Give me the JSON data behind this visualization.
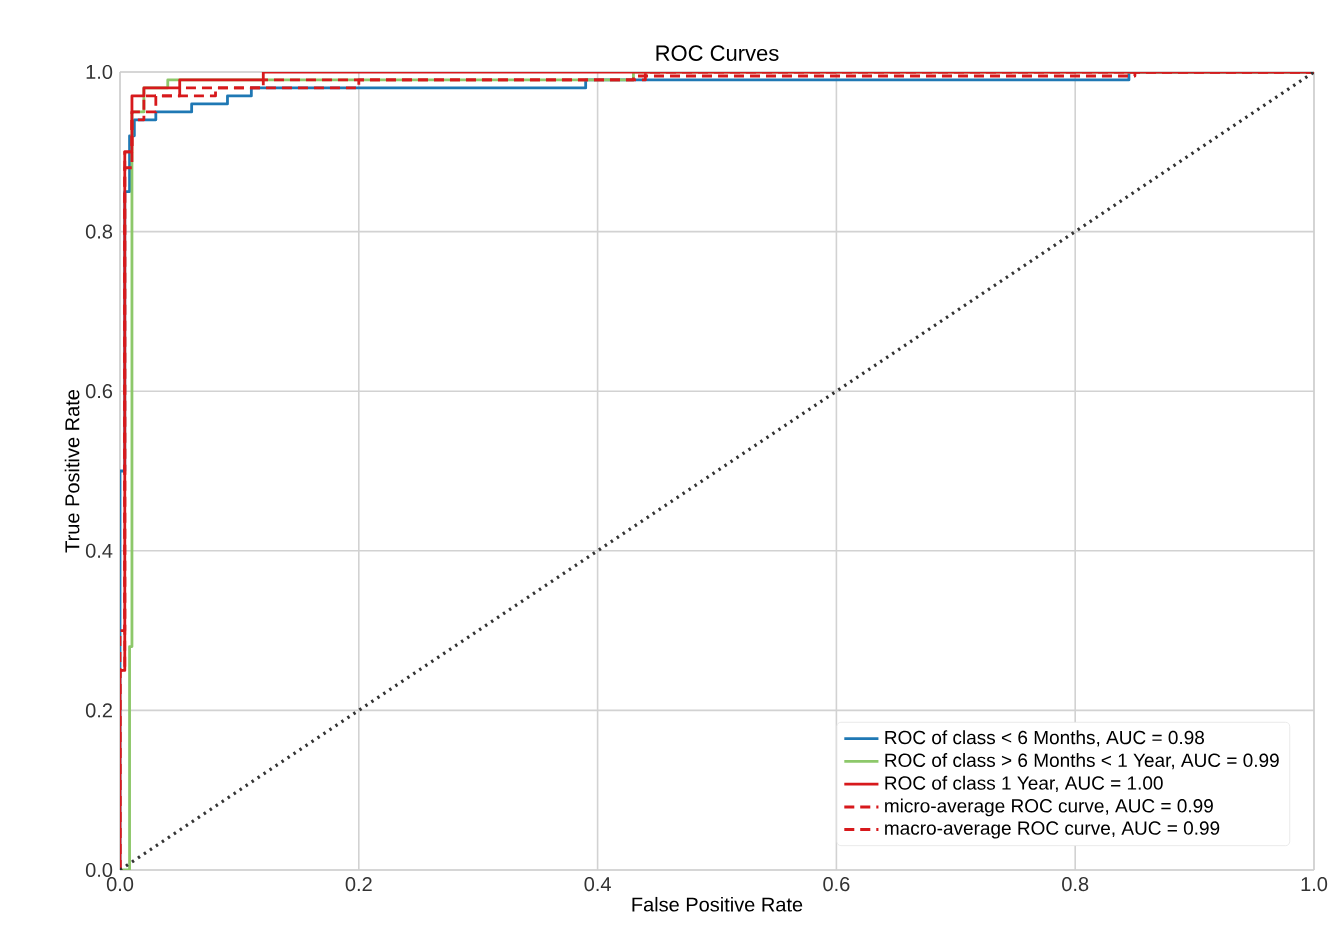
{
  "chart_data": {
    "type": "line",
    "title": "ROC Curves",
    "xlabel": "False Positive Rate",
    "ylabel": "True Positive Rate",
    "xlim": [
      0,
      1
    ],
    "ylim": [
      0,
      1
    ],
    "xticks": [
      {
        "value": 0,
        "label": "0.0"
      },
      0.2,
      0.4,
      0.6,
      0.8,
      {
        "value": 1,
        "label": "1.0"
      }
    ],
    "yticks": [
      {
        "value": 0,
        "label": "0.0"
      },
      0.2,
      0.4,
      0.6,
      0.8,
      {
        "value": 1,
        "label": "1.0"
      }
    ],
    "grid": true,
    "legend": "bottom right",
    "marker": "none",
    "series": [
      {
        "name": "ROC of class < 6 Months, AUC = 0.98",
        "color": "#1f78b4",
        "line_style": "solid",
        "x": [
          0,
          0,
          0.004,
          0.004,
          0.008,
          0.008,
          0.012,
          0.012,
          0.03,
          0.03,
          0.06,
          0.06,
          0.09,
          0.09,
          0.11,
          0.11,
          0.39,
          0.39,
          0.845,
          0.845,
          1
        ],
        "values": [
          0,
          0.5,
          0.5,
          0.85,
          0.85,
          0.92,
          0.92,
          0.94,
          0.94,
          0.95,
          0.95,
          0.96,
          0.96,
          0.97,
          0.97,
          0.98,
          0.98,
          0.99,
          0.99,
          1,
          1
        ]
      },
      {
        "name": "ROC of class > 6 Months < 1 Year, AUC = 0.99",
        "color": "#8dc86a",
        "line_style": "solid",
        "x": [
          0,
          0.008,
          0.008,
          0.01,
          0.01,
          0.02,
          0.02,
          0.04,
          0.04,
          0.43,
          0.43,
          1
        ],
        "values": [
          0,
          0,
          0.28,
          0.28,
          0.95,
          0.95,
          0.98,
          0.98,
          0.99,
          0.99,
          1,
          1
        ]
      },
      {
        "name": "ROC of class  1 Year, AUC = 1.00",
        "color": "#d7191c",
        "line_style": "solid",
        "x": [
          0,
          0,
          0.004,
          0.004,
          0.01,
          0.01,
          0.02,
          0.02,
          0.05,
          0.05,
          0.12,
          0.12,
          1
        ],
        "values": [
          0,
          0.25,
          0.25,
          0.9,
          0.9,
          0.97,
          0.97,
          0.98,
          0.98,
          0.99,
          0.99,
          1,
          1
        ]
      },
      {
        "name": "micro-average ROC curve, AUC = 0.99",
        "color": "#d7191c",
        "line_style": "dashed",
        "x": [
          0,
          0,
          0.004,
          0.004,
          0.01,
          0.01,
          0.03,
          0.03,
          0.08,
          0.08,
          0.2,
          0.2,
          0.44,
          0.44,
          1
        ],
        "values": [
          0,
          0.3,
          0.3,
          0.9,
          0.9,
          0.95,
          0.95,
          0.97,
          0.97,
          0.98,
          0.98,
          0.99,
          0.99,
          1,
          1
        ]
      },
      {
        "name": "macro-average ROC curve, AUC = 0.99",
        "color": "#d7191c",
        "line_style": "dashed",
        "x": [
          0,
          0,
          0.004,
          0.004,
          0.01,
          0.01,
          0.02,
          0.02,
          0.05,
          0.05,
          0.12,
          0.12,
          0.43,
          0.43,
          0.85,
          0.85,
          1
        ],
        "values": [
          0,
          0.25,
          0.25,
          0.88,
          0.88,
          0.94,
          0.94,
          0.97,
          0.97,
          0.98,
          0.98,
          0.99,
          0.99,
          0.995,
          0.995,
          1,
          1
        ]
      },
      {
        "color": "#333333",
        "line_style": "dotted",
        "x": [
          0,
          1
        ],
        "values": [
          0,
          1
        ]
      }
    ]
  }
}
